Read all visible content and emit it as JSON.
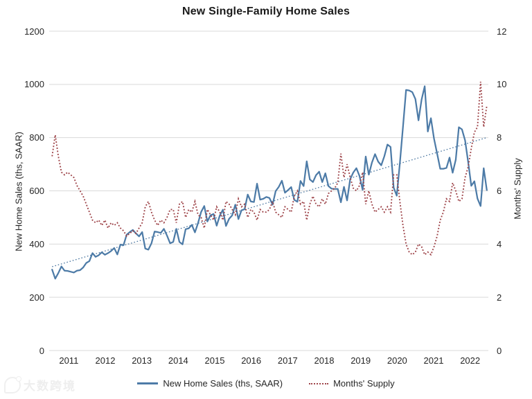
{
  "title": "New Single-Family Home Sales",
  "left_axis": {
    "label": "New Home Sales (ths, SAAR)",
    "ticks": [
      "1200",
      "1000",
      "800",
      "600",
      "400",
      "200",
      "0"
    ],
    "min": 0,
    "max": 1200
  },
  "right_axis": {
    "label": "Months' Supply",
    "ticks": [
      "12",
      "10",
      "8",
      "6",
      "4",
      "2",
      "0"
    ],
    "min": 0,
    "max": 12
  },
  "x_axis": {
    "years": [
      "2011",
      "2012",
      "2013",
      "2014",
      "2015",
      "2016",
      "2017",
      "2018",
      "2019",
      "2020",
      "2021",
      "2022"
    ]
  },
  "legend": {
    "items": [
      {
        "label": "New Home Sales (ths, SAAR)",
        "style": "solid",
        "color": "#4d7ba7"
      },
      {
        "label": "Months' Supply",
        "style": "dotted",
        "color": "#9e4449"
      }
    ]
  },
  "watermark": {
    "text": "大数跨境"
  },
  "colors": {
    "sales_line": "#4d7ba7",
    "supply_line": "#9e4449",
    "trend_line": "#48749e",
    "gridline": "#d9d9d9",
    "text": "#262626"
  },
  "chart_data": {
    "type": "line",
    "title": "New Single-Family Home Sales",
    "frequency": "monthly",
    "x_start": "2011-01",
    "x_end": "2022-09",
    "x_tick_labels": [
      "2011",
      "2012",
      "2013",
      "2014",
      "2015",
      "2016",
      "2017",
      "2018",
      "2019",
      "2020",
      "2021",
      "2022"
    ],
    "left_ylabel": "New Home Sales (ths, SAAR)",
    "left_ylim": [
      0,
      1200
    ],
    "right_ylabel": "Months' Supply",
    "right_ylim": [
      0,
      12
    ],
    "grid": "horizontal",
    "legend_position": "bottom",
    "series": [
      {
        "name": "New Home Sales (ths, SAAR)",
        "axis": "left",
        "style": "solid",
        "color": "#4d7ba7",
        "values": [
          304,
          270,
          291,
          316,
          300,
          299,
          296,
          293,
          300,
          302,
          312,
          329,
          336,
          366,
          352,
          358,
          369,
          360,
          366,
          374,
          385,
          361,
          398,
          396,
          435,
          445,
          453,
          440,
          429,
          445,
          383,
          379,
          403,
          447,
          445,
          442,
          457,
          432,
          403,
          408,
          457,
          408,
          399,
          456,
          459,
          472,
          444,
          479,
          521,
          543,
          485,
          508,
          513,
          469,
          507,
          529,
          468,
          495,
          508,
          548,
          494,
          527,
          531,
          586,
          560,
          558,
          627,
          567,
          570,
          577,
          573,
          548,
          599,
          615,
          638,
          593,
          603,
          614,
          566,
          559,
          637,
          618,
          711,
          643,
          633,
          659,
          672,
          633,
          666,
          618,
          608,
          607,
          607,
          557,
          615,
          564,
          644,
          669,
          685,
          656,
          604,
          729,
          661,
          706,
          738,
          710,
          696,
          730,
          774,
          765,
          612,
          582,
          704,
          840,
          979,
          977,
          971,
          945,
          865,
          943,
          993,
          823,
          873,
          796,
          740,
          683,
          683,
          686,
          725,
          668,
          717,
          839,
          831,
          790,
          708,
          619,
          636,
          571,
          543,
          685,
          603
        ]
      },
      {
        "name": "Months' Supply",
        "axis": "right",
        "style": "dotted",
        "color": "#9e4449",
        "values": [
          7.3,
          8.1,
          7.3,
          6.7,
          6.6,
          6.7,
          6.6,
          6.5,
          6.2,
          6.0,
          5.8,
          5.5,
          5.2,
          4.9,
          4.8,
          4.9,
          4.7,
          4.9,
          4.6,
          4.8,
          4.7,
          4.8,
          4.6,
          4.5,
          4.3,
          4.4,
          4.5,
          4.4,
          4.6,
          4.8,
          5.4,
          5.6,
          5.2,
          4.9,
          4.7,
          4.9,
          4.8,
          5.0,
          5.3,
          5.3,
          4.8,
          5.5,
          5.6,
          5.0,
          5.3,
          5.2,
          5.6,
          5.1,
          5.0,
          4.6,
          5.3,
          5.1,
          4.9,
          5.4,
          5.2,
          4.9,
          5.6,
          5.5,
          5.3,
          5.1,
          5.7,
          5.4,
          5.5,
          5.0,
          5.3,
          5.2,
          4.9,
          5.3,
          5.2,
          5.2,
          5.3,
          5.6,
          5.2,
          5.1,
          5.0,
          5.4,
          5.3,
          5.2,
          5.8,
          6.0,
          5.5,
          5.6,
          4.9,
          5.5,
          5.8,
          5.5,
          5.4,
          5.7,
          5.5,
          5.9,
          6.0,
          6.1,
          6.3,
          7.4,
          6.5,
          7.0,
          6.5,
          6.1,
          6.0,
          6.2,
          6.7,
          5.5,
          6.0,
          5.5,
          5.2,
          5.3,
          5.4,
          5.2,
          5.4,
          5.2,
          6.6,
          6.6,
          5.6,
          4.7,
          4.0,
          3.7,
          3.6,
          3.7,
          4.0,
          3.9,
          3.6,
          3.7,
          3.6,
          3.9,
          4.3,
          4.9,
          5.2,
          5.7,
          5.6,
          6.3,
          6.0,
          5.6,
          5.7,
          6.5,
          6.9,
          7.6,
          8.2,
          8.4,
          10.1,
          8.4,
          9.2
        ]
      }
    ],
    "trendline": {
      "name": "Linear trend of New Home Sales",
      "axis": "left",
      "style": "dotted",
      "color": "#48749e",
      "start_value": 315,
      "end_value": 800
    }
  }
}
